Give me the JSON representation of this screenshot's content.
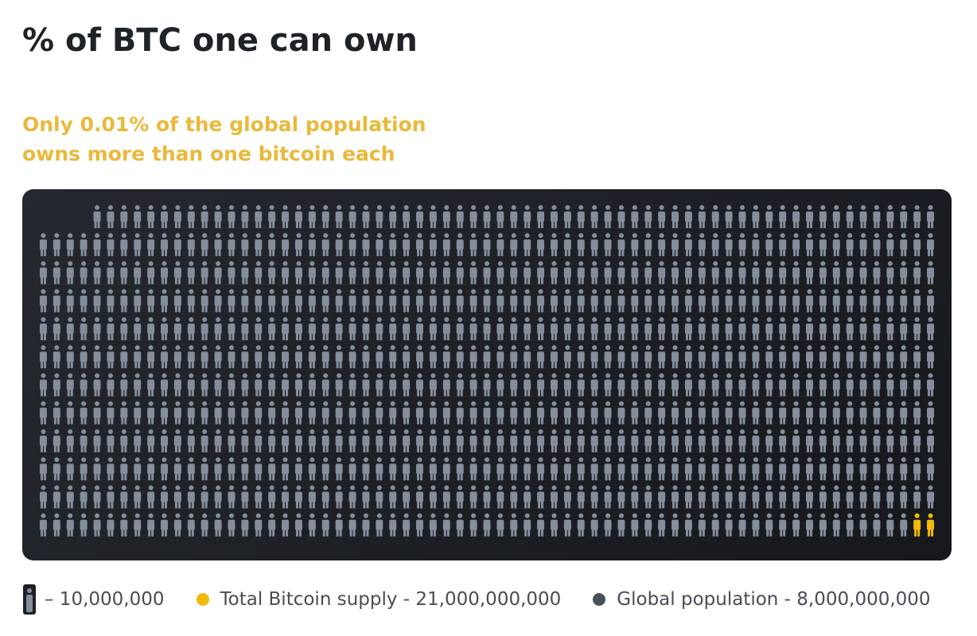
{
  "header": {
    "title": "% of BTC one can own",
    "subtitle_lines": [
      "Only 0.01% of the global population",
      "owns more than one bitcoin each"
    ]
  },
  "pictogram": {
    "highlighted_icons": 2
  },
  "legend": {
    "unit": {
      "label": "– 10,000,000",
      "value": 10000000
    },
    "supply": {
      "label": "Total Bitcoin supply - 21,000,000,000",
      "value": 21000000000,
      "color": "#f0b90b"
    },
    "population": {
      "label": "Global population - 8,000,000,000",
      "value": 8000000000,
      "color": "#4a5159"
    }
  }
}
